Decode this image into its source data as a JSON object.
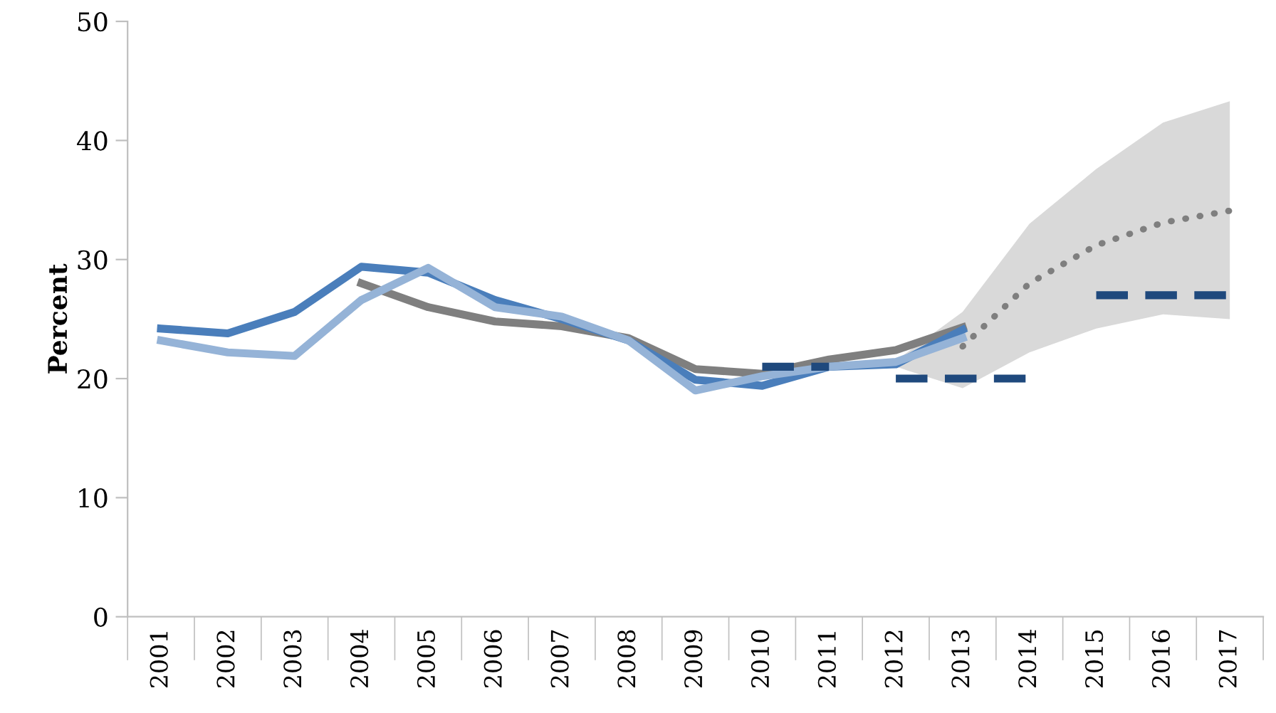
{
  "chart_data": {
    "type": "line",
    "ylabel": "Percent",
    "categories": [
      "2001",
      "2002",
      "2003",
      "2004",
      "2005",
      "2006",
      "2007",
      "2008",
      "2009",
      "2010",
      "2011",
      "2012",
      "2013",
      "2014",
      "2015",
      "2016",
      "2017"
    ],
    "ylim": [
      0,
      50
    ],
    "yticks": [
      0,
      10,
      20,
      30,
      40,
      50
    ],
    "grid": false,
    "legend": false,
    "marker": "none",
    "series": [
      {
        "color": "#d9d9d9",
        "values": [
          null,
          null,
          null,
          null,
          null,
          null,
          null,
          null,
          null,
          null,
          null,
          null,
          null,
          null,
          null,
          null,
          null
        ],
        "lower": [
          null,
          null,
          null,
          null,
          null,
          null,
          null,
          null,
          null,
          null,
          null,
          21.0,
          19.2,
          22.2,
          24.2,
          25.4,
          25.0
        ],
        "upper": [
          null,
          null,
          null,
          null,
          null,
          null,
          null,
          null,
          null,
          null,
          null,
          21.5,
          25.6,
          33.0,
          37.6,
          41.5,
          43.3
        ]
      },
      {
        "color": "#7f7f7f",
        "line_style": "dotted",
        "values": [
          null,
          null,
          null,
          null,
          null,
          null,
          null,
          null,
          null,
          null,
          null,
          null,
          22.7,
          28.0,
          31.2,
          33.1,
          34.1
        ]
      },
      {
        "color": "#7f7f7f",
        "line_style": "solid",
        "values": [
          null,
          null,
          null,
          28.0,
          26.0,
          24.8,
          24.4,
          23.4,
          20.8,
          20.4,
          21.6,
          22.4,
          24.3,
          null,
          null,
          null,
          null
        ]
      },
      {
        "color": "#4a7ebb",
        "line_style": "solid",
        "values": [
          24.2,
          23.8,
          25.6,
          29.4,
          28.9,
          26.6,
          25.0,
          23.2,
          19.9,
          19.4,
          21.0,
          21.2,
          24.1,
          null,
          null,
          null,
          null
        ]
      },
      {
        "color": "#95b3d7",
        "line_style": "solid",
        "values": [
          23.2,
          22.2,
          21.9,
          26.6,
          29.3,
          26.0,
          25.2,
          23.2,
          19.0,
          20.2,
          21.0,
          21.4,
          23.4,
          null,
          null,
          null,
          null
        ]
      },
      {
        "color": "#1f497d",
        "line_style": "dashed",
        "values": [
          null,
          null,
          null,
          null,
          null,
          null,
          null,
          null,
          null,
          21.0,
          21.0,
          null,
          null,
          null,
          null,
          null,
          null
        ]
      },
      {
        "color": "#1f497d",
        "line_style": "dashed",
        "values": [
          null,
          null,
          null,
          null,
          null,
          null,
          null,
          null,
          null,
          null,
          null,
          20.0,
          20.0,
          20.0,
          null,
          null,
          null
        ]
      },
      {
        "color": "#1f497d",
        "line_style": "dashed",
        "values": [
          null,
          null,
          null,
          null,
          null,
          null,
          null,
          null,
          null,
          null,
          null,
          null,
          null,
          null,
          27.0,
          27.0,
          27.0
        ]
      }
    ]
  }
}
